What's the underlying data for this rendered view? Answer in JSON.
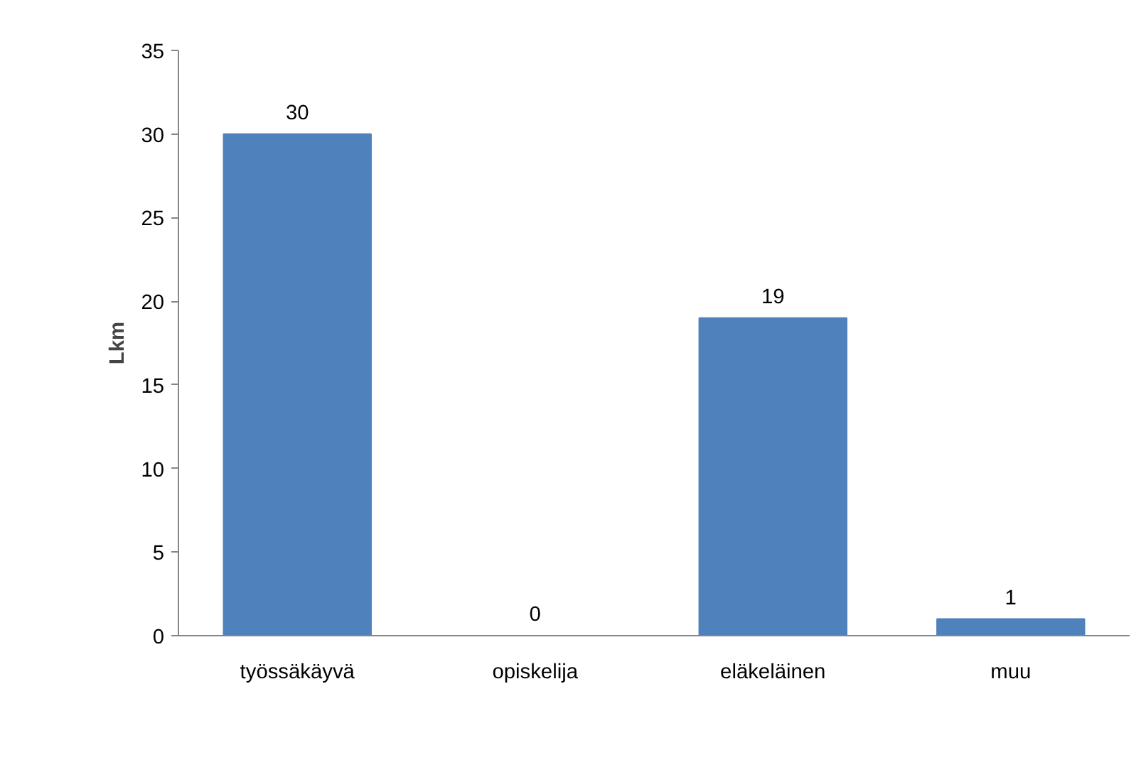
{
  "chart_data": {
    "type": "bar",
    "ylabel": "Lkm",
    "categories": [
      "työssäkäyvä",
      "opiskelija",
      "eläkeläinen",
      "muu"
    ],
    "values": [
      30,
      0,
      19,
      1
    ],
    "color": "#4f81bd",
    "ylim": [
      0,
      35
    ],
    "yticks": [
      0,
      5,
      10,
      15,
      20,
      25,
      30,
      35
    ],
    "grid": false,
    "data_labels": true
  }
}
